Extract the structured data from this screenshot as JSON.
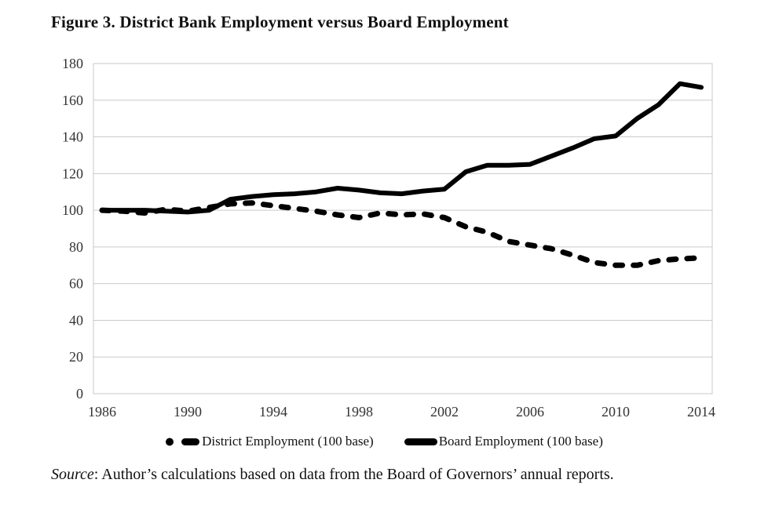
{
  "page": {
    "title": "Figure 3. District Bank Employment versus Board Employment",
    "source_label": "Source",
    "source_text": ": Author’s calculations based on data from the Board of Governors’ annual reports."
  },
  "chart_data": {
    "type": "line",
    "title": "Figure 3. District Bank Employment versus Board Employment",
    "x": [
      1986,
      1987,
      1988,
      1989,
      1990,
      1991,
      1992,
      1993,
      1994,
      1995,
      1996,
      1997,
      1998,
      1999,
      2000,
      2001,
      2002,
      2003,
      2004,
      2005,
      2006,
      2007,
      2008,
      2009,
      2010,
      2011,
      2012,
      2013,
      2014
    ],
    "series": [
      {
        "name": "District Employment (100 base)",
        "style": "dashed",
        "color": "#000000",
        "values": [
          100,
          99.5,
          98.5,
          100.5,
          99.5,
          101.5,
          103.5,
          104,
          102.5,
          101,
          99.5,
          97.5,
          96,
          98.5,
          97.5,
          98,
          96,
          91,
          88,
          83,
          81,
          79,
          75.5,
          71.5,
          70,
          70,
          72.5,
          73.5,
          74
        ]
      },
      {
        "name": "Board Employment (100 base)",
        "style": "solid",
        "color": "#000000",
        "values": [
          100,
          100,
          100,
          99.5,
          99,
          100,
          106,
          107.5,
          108.5,
          109,
          110,
          112,
          111,
          109.5,
          109,
          110.5,
          111.5,
          121,
          124.5,
          124.5,
          125,
          129.5,
          134,
          139,
          140.5,
          150,
          157.5,
          169,
          167
        ]
      }
    ],
    "xticks": [
      1986,
      1990,
      1994,
      1998,
      2002,
      2006,
      2010,
      2014
    ],
    "yticks": [
      0,
      20,
      40,
      60,
      80,
      100,
      120,
      140,
      160,
      180
    ],
    "xlim": [
      1986,
      2014
    ],
    "ylim": [
      0,
      180
    ],
    "grid": "horizontal",
    "legend_position": "bottom",
    "colors": {
      "line": "#000000",
      "grid": "#c9c9c9",
      "tick_text": "#333333"
    }
  }
}
